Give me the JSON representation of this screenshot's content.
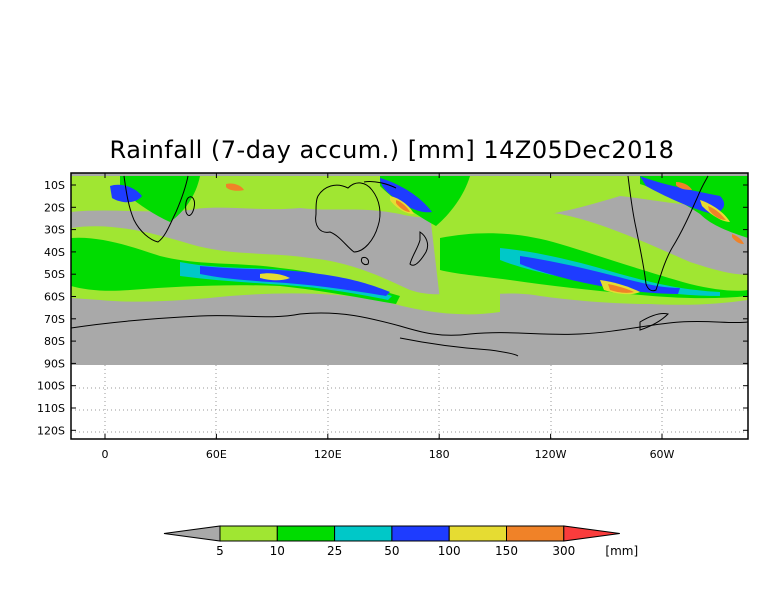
{
  "title": "Rainfall (7-day accum.) [mm] 14Z05Dec2018",
  "map": {
    "lat_labels": [
      "10S",
      "20S",
      "30S",
      "40S",
      "50S",
      "60S",
      "70S",
      "80S",
      "90S",
      "100S",
      "110S",
      "120S"
    ],
    "lon_labels": [
      "0",
      "60E",
      "120E",
      "180",
      "120W",
      "60W"
    ],
    "grid": true,
    "no_data_color": "#a9a9a9",
    "coastline_color": "#000000"
  },
  "colorbar": {
    "levels": [
      "5",
      "10",
      "25",
      "50",
      "100",
      "150",
      "300"
    ],
    "unit": "[mm]",
    "colors": [
      "#a9a9a9",
      "#a0e632",
      "#00dc00",
      "#00c8c8",
      "#1e3cff",
      "#e6dc32",
      "#f08228",
      "#fa3c3c"
    ]
  }
}
